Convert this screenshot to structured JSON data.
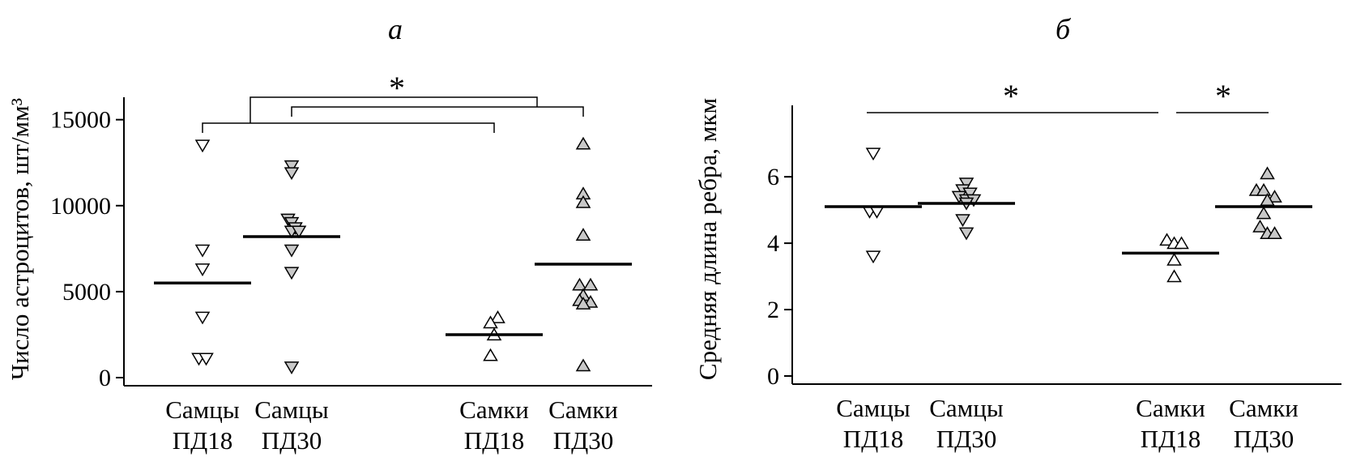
{
  "chart_data": [
    {
      "type": "scatter",
      "title": "а",
      "ylabel": "Число астроцитов, шт/мм³",
      "ylim": [
        0,
        15000
      ],
      "yticks": [
        0,
        5000,
        10000,
        15000
      ],
      "categories": [
        {
          "line1": "Самцы",
          "line2": "ПД18"
        },
        {
          "line1": "Самцы",
          "line2": "ПД30"
        },
        {
          "line1": "Самки",
          "line2": "ПД18"
        },
        {
          "line1": "Самки",
          "line2": "ПД30"
        }
      ],
      "groups": [
        {
          "category": 0,
          "marker": "triangle-down",
          "fill": "#ffffff",
          "points": [
            [
              0.2,
              13500
            ],
            [
              0.2,
              7400
            ],
            [
              0.2,
              6300
            ],
            [
              0.2,
              3500
            ],
            [
              0.15,
              1100
            ],
            [
              0.25,
              1100
            ]
          ],
          "median": 5500
        },
        {
          "category": 1,
          "marker": "triangle-down",
          "fill": "#c8c8c8",
          "points": [
            [
              1.2,
              12300
            ],
            [
              1.2,
              11900
            ],
            [
              1.15,
              9200
            ],
            [
              1.2,
              9000
            ],
            [
              1.25,
              8700
            ],
            [
              1.2,
              8500
            ],
            [
              1.3,
              8500
            ],
            [
              1.2,
              7400
            ],
            [
              1.2,
              6100
            ],
            [
              1.2,
              600
            ]
          ],
          "median": 8200
        },
        {
          "category": 2,
          "marker": "triangle-up",
          "fill": "#ffffff",
          "points": [
            [
              2.25,
              3500
            ],
            [
              2.15,
              3200
            ],
            [
              2.2,
              2500
            ],
            [
              2.15,
              1300
            ]
          ],
          "median": 2500
        },
        {
          "category": 3,
          "marker": "triangle-up",
          "fill": "#c8c8c8",
          "points": [
            [
              3.2,
              13600
            ],
            [
              3.2,
              10700
            ],
            [
              3.2,
              10200
            ],
            [
              3.2,
              8300
            ],
            [
              3.15,
              5400
            ],
            [
              3.3,
              5400
            ],
            [
              3.2,
              4800
            ],
            [
              3.15,
              4500
            ],
            [
              3.3,
              4400
            ],
            [
              3.2,
              4300
            ],
            [
              3.2,
              700
            ]
          ],
          "median": 6600
        }
      ],
      "significance": [
        {
          "from": 0,
          "to": 2,
          "level": 14500
        },
        {
          "from": 1,
          "to": 3,
          "level": 15500
        },
        {
          "from": 0.5,
          "to": 2.5,
          "level": 16000,
          "label": "*"
        }
      ]
    },
    {
      "type": "scatter",
      "title": "б",
      "ylabel": "Средняя длина ребра, мкм",
      "ylim": [
        0,
        7.5
      ],
      "yticks": [
        0,
        2,
        4,
        6
      ],
      "categories": [
        {
          "line1": "Самцы",
          "line2": "ПД18"
        },
        {
          "line1": "Самцы",
          "line2": "ПД30"
        },
        {
          "line1": "Самки",
          "line2": "ПД18"
        },
        {
          "line1": "Самки",
          "line2": "ПД30"
        }
      ],
      "groups": [
        {
          "category": 0,
          "marker": "triangle-down",
          "fill": "#ffffff",
          "points": [
            [
              0.2,
              6.7
            ],
            [
              0.15,
              4.95
            ],
            [
              0.25,
              4.95
            ],
            [
              0.2,
              3.6
            ]
          ],
          "median": 5.1
        },
        {
          "category": 1,
          "marker": "triangle-down",
          "fill": "#c8c8c8",
          "points": [
            [
              1.2,
              5.8
            ],
            [
              1.15,
              5.6
            ],
            [
              1.25,
              5.5
            ],
            [
              1.1,
              5.4
            ],
            [
              1.2,
              5.3
            ],
            [
              1.3,
              5.3
            ],
            [
              1.2,
              5.2
            ],
            [
              1.15,
              4.7
            ],
            [
              1.2,
              4.3
            ]
          ],
          "median": 5.2
        },
        {
          "category": 2,
          "marker": "triangle-up",
          "fill": "#ffffff",
          "points": [
            [
              2.15,
              4.1
            ],
            [
              2.25,
              4.0
            ],
            [
              2.35,
              4.0
            ],
            [
              2.25,
              3.5
            ],
            [
              2.25,
              3.0
            ]
          ],
          "median": 3.7
        },
        {
          "category": 3,
          "marker": "triangle-up",
          "fill": "#c8c8c8",
          "points": [
            [
              3.25,
              6.1
            ],
            [
              3.1,
              5.6
            ],
            [
              3.2,
              5.6
            ],
            [
              3.35,
              5.4
            ],
            [
              3.25,
              5.3
            ],
            [
              3.2,
              4.9
            ],
            [
              3.15,
              4.5
            ],
            [
              3.25,
              4.3
            ],
            [
              3.35,
              4.3
            ]
          ],
          "median": 5.1
        }
      ],
      "significance": [
        {
          "from": 0,
          "to": 2.1,
          "level": 7.5,
          "label": "*"
        },
        {
          "from": 2.2,
          "to": 3.2,
          "level": 7.5,
          "label": "*"
        }
      ]
    }
  ]
}
